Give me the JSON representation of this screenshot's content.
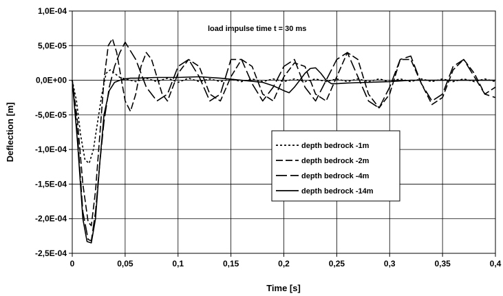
{
  "chart_data": {
    "type": "line",
    "annotation": "load impulse time t = 30 ms",
    "xlabel": "Time  [s]",
    "ylabel": "Deflection  [m]",
    "xlim": [
      0,
      0.4
    ],
    "ylim": [
      -0.00025,
      0.0001
    ],
    "x_ticks": [
      0,
      0.05,
      0.1,
      0.15,
      0.2,
      0.25,
      0.3,
      0.35,
      0.4
    ],
    "x_tick_labels": [
      "0",
      "0,05",
      "0,1",
      "0,15",
      "0,2",
      "0,25",
      "0,3",
      "0,35",
      "0,4"
    ],
    "y_ticks": [
      0.0001,
      5e-05,
      0,
      -5e-05,
      -0.0001,
      -0.00015,
      -0.0002,
      -0.00025
    ],
    "y_tick_labels": [
      "1,0E-04",
      "5,0E-05",
      "0,0E+00",
      "-5,0E-05",
      "-1,0E-04",
      "-1,5E-04",
      "-2,0E-04",
      "-2,5E-04"
    ],
    "grid": true,
    "legend_position": "center-right",
    "series": [
      {
        "name": "depth bedrock  -1m",
        "dash": "3,3",
        "x": [
          0,
          0.004,
          0.008,
          0.012,
          0.016,
          0.02,
          0.024,
          0.028,
          0.032,
          0.036,
          0.04,
          0.045,
          0.05,
          0.06,
          0.07,
          0.08,
          0.09,
          0.1,
          0.11,
          0.12,
          0.13,
          0.14,
          0.15,
          0.16,
          0.17,
          0.18,
          0.19,
          0.2,
          0.21,
          0.22,
          0.23,
          0.24,
          0.25,
          0.26,
          0.27,
          0.28,
          0.29,
          0.3,
          0.31,
          0.32,
          0.33,
          0.34,
          0.35,
          0.36,
          0.37,
          0.38,
          0.39,
          0.4
        ],
        "y": [
          0,
          -3e-05,
          -8e-05,
          -0.000115,
          -0.00012,
          -0.0001,
          -6e-05,
          -2e-05,
          1e-05,
          1.5e-05,
          1e-05,
          4e-06,
          2e-06,
          -2e-06,
          3e-06,
          -2e-06,
          3e-06,
          -3e-06,
          3e-06,
          -2e-06,
          2e-06,
          -2e-06,
          2e-06,
          -2e-06,
          2e-06,
          -2e-06,
          2e-06,
          -2e-06,
          2e-06,
          -2e-06,
          2e-06,
          -2e-06,
          2e-06,
          -2e-06,
          2e-06,
          -2e-06,
          2e-06,
          -2e-06,
          2e-06,
          -2e-06,
          2e-06,
          -2e-06,
          2e-06,
          -2e-06,
          2e-06,
          -2e-06,
          2e-06,
          -2e-06
        ]
      },
      {
        "name": "depth bedrock  -2m",
        "dash": "10,4",
        "x": [
          0,
          0.005,
          0.01,
          0.015,
          0.018,
          0.022,
          0.026,
          0.03,
          0.034,
          0.038,
          0.042,
          0.046,
          0.05,
          0.055,
          0.06,
          0.065,
          0.07,
          0.075,
          0.08,
          0.085,
          0.09,
          0.095,
          0.1,
          0.11,
          0.12,
          0.13,
          0.14,
          0.15,
          0.16,
          0.17,
          0.18,
          0.19,
          0.2,
          0.21,
          0.22,
          0.23,
          0.24,
          0.25,
          0.26,
          0.27,
          0.28,
          0.29,
          0.3,
          0.31,
          0.32,
          0.33,
          0.34,
          0.35,
          0.36,
          0.37,
          0.38,
          0.39,
          0.4
        ],
        "y": [
          0,
          -6e-05,
          -0.00015,
          -0.000205,
          -0.00021,
          -0.00016,
          -8e-05,
          0,
          5e-05,
          6e-05,
          4e-05,
          5e-06,
          -3e-05,
          -4.5e-05,
          -2e-05,
          2e-05,
          4e-05,
          3e-05,
          5e-06,
          -2e-05,
          -3e-05,
          -1e-05,
          1e-05,
          3e-05,
          2e-05,
          -2e-05,
          -3e-05,
          5e-06,
          3e-05,
          2e-05,
          -2e-05,
          -3e-05,
          5e-06,
          2.5e-05,
          2e-05,
          -2e-05,
          -3e-05,
          5e-06,
          4e-05,
          3e-05,
          -2e-05,
          -4e-05,
          -2e-05,
          3e-05,
          3e-05,
          -5e-06,
          -3.5e-05,
          -2.5e-05,
          1.5e-05,
          3e-05,
          1e-05,
          -2e-05,
          -1e-05
        ]
      },
      {
        "name": "depth bedrock  -4m",
        "dash": "16,5",
        "x": [
          0,
          0.005,
          0.01,
          0.015,
          0.018,
          0.022,
          0.026,
          0.03,
          0.035,
          0.04,
          0.045,
          0.05,
          0.06,
          0.07,
          0.08,
          0.09,
          0.1,
          0.11,
          0.12,
          0.13,
          0.14,
          0.15,
          0.16,
          0.17,
          0.18,
          0.19,
          0.2,
          0.21,
          0.22,
          0.23,
          0.24,
          0.25,
          0.26,
          0.27,
          0.28,
          0.29,
          0.3,
          0.31,
          0.32,
          0.33,
          0.34,
          0.35,
          0.36,
          0.37,
          0.38,
          0.39,
          0.4
        ],
        "y": [
          0,
          -8e-05,
          -0.00019,
          -0.00023,
          -0.000232,
          -0.00019,
          -0.00012,
          -6e-05,
          -1e-05,
          2e-05,
          4e-05,
          5.5e-05,
          3e-05,
          -1e-05,
          -3e-05,
          -2e-05,
          2e-05,
          3e-05,
          5e-06,
          -3e-05,
          -2e-05,
          3e-05,
          3e-05,
          -5e-06,
          -3e-05,
          -1e-05,
          2e-05,
          3e-05,
          -1e-05,
          -3e-05,
          0,
          3e-05,
          4e-05,
          5e-06,
          -3e-05,
          -4e-05,
          -1e-05,
          3e-05,
          3.5e-05,
          -5e-06,
          -3e-05,
          -2e-05,
          2e-05,
          3e-05,
          5e-06,
          -2e-05,
          -2.5e-05
        ]
      },
      {
        "name": "depth bedrock  -14m",
        "dash": "",
        "x": [
          0,
          0.005,
          0.01,
          0.014,
          0.018,
          0.022,
          0.026,
          0.03,
          0.035,
          0.04,
          0.045,
          0.05,
          0.055,
          0.06,
          0.08,
          0.1,
          0.12,
          0.14,
          0.16,
          0.18,
          0.19,
          0.2,
          0.205,
          0.21,
          0.215,
          0.22,
          0.225,
          0.23,
          0.235,
          0.24,
          0.245,
          0.25,
          0.26,
          0.28,
          0.3,
          0.32,
          0.34,
          0.36,
          0.38,
          0.4
        ],
        "y": [
          0,
          -9e-05,
          -0.0002,
          -0.000233,
          -0.000235,
          -0.0002,
          -0.00012,
          -5e-05,
          -1.5e-05,
          -3e-06,
          0,
          2e-06,
          3e-06,
          3e-06,
          4e-06,
          4e-06,
          5e-06,
          3e-06,
          0,
          -3e-06,
          -8e-06,
          -1.5e-05,
          -1.8e-05,
          -1e-05,
          0,
          1e-05,
          1.7e-05,
          1.8e-05,
          1e-05,
          0,
          -5e-06,
          -5e-06,
          -4e-06,
          -3e-06,
          -2e-06,
          0,
          0,
          0,
          0,
          0
        ]
      }
    ]
  }
}
